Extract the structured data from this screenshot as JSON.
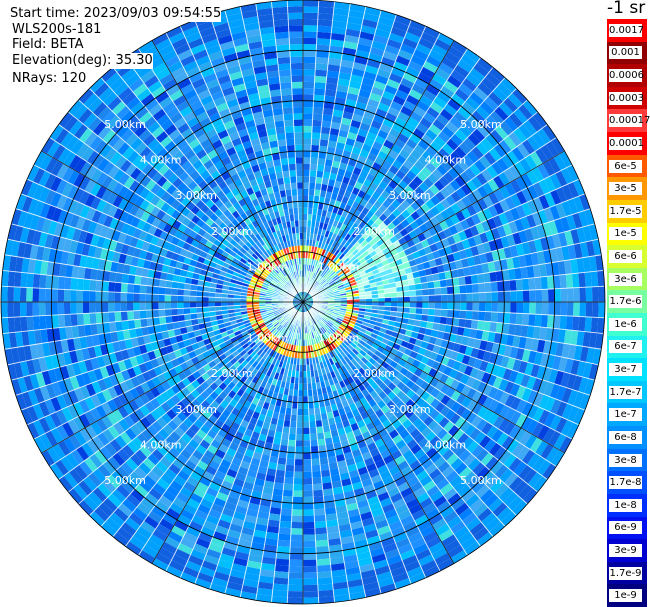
{
  "info": {
    "start_time": "Start time: 2023/09/03 09:54:55",
    "instrument": "WLS200s-181",
    "field": "Field: BETA",
    "elevation": "Elevation(deg): 35.30",
    "nrays": "NRays: 120"
  },
  "chart_data": {
    "type": "heatmap",
    "projection": "polar PPI",
    "field": "BETA",
    "elevation_deg": 35.3,
    "n_rays": 120,
    "range_rings_km": [
      1,
      2,
      3,
      4,
      5
    ],
    "range_ring_labels": [
      "1.00km",
      "2.00km",
      "3.00km",
      "4.00km",
      "5.00km"
    ],
    "max_range_km": 6,
    "spoke_angles_deg": [
      0,
      30,
      60,
      90,
      120,
      150,
      180,
      210,
      240,
      270,
      300,
      330
    ],
    "background_level": "~1e-7 to 1.7e-9 (blue)",
    "near_ring_peak_km": 1.0,
    "near_ring_level": "~1e-5 to 3e-5 (orange/red)",
    "colorbar": {
      "title": "-1 sr",
      "labels": [
        "0.0017",
        "0.001",
        "0.0006",
        "0.0003",
        "0.00017",
        "0.0001",
        "6e-5",
        "3e-5",
        "1.7e-5",
        "1e-5",
        "6e-6",
        "3e-6",
        "1.7e-6",
        "1e-6",
        "6e-7",
        "3e-7",
        "1.7e-7",
        "1e-7",
        "6e-8",
        "3e-8",
        "1.7e-8",
        "1e-8",
        "6e-9",
        "3e-9",
        "1.7e-9",
        "1e-9"
      ],
      "colors": [
        "#ff0000",
        "#900000",
        "#b00000",
        "#d00000",
        "#ff3a3a",
        "#ff0000",
        "#ff5a00",
        "#ff9800",
        "#ffcc00",
        "#ffff00",
        "#d8ff30",
        "#a8ff60",
        "#78ffa0",
        "#40ffd0",
        "#20f0f0",
        "#00e0ff",
        "#00c8ff",
        "#00a8ff",
        "#0090ff",
        "#0070ff",
        "#0050ff",
        "#0030ff",
        "#0010f0",
        "#0000d0",
        "#0000a0",
        "#000080"
      ]
    }
  }
}
